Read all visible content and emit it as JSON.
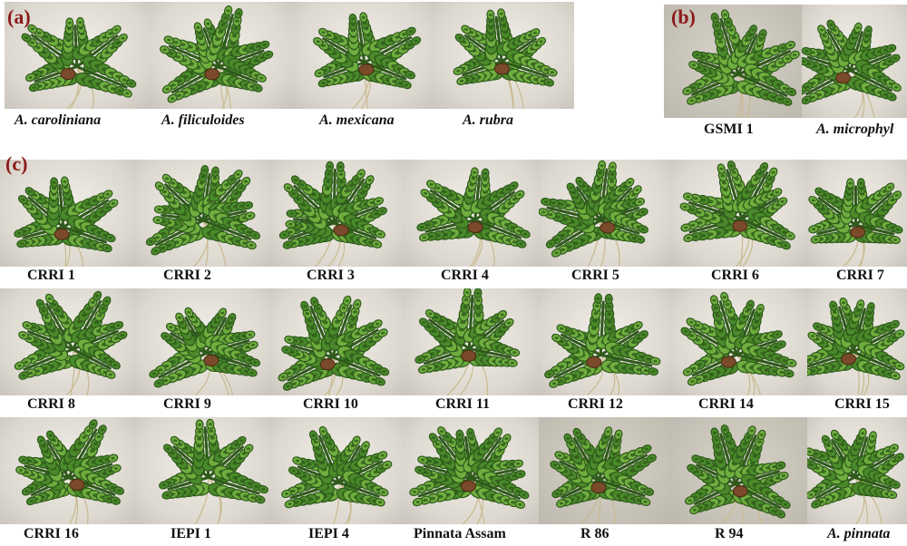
{
  "panels": {
    "a": {
      "letter": "(a)"
    },
    "b": {
      "letter": "(b)"
    },
    "c": {
      "letter": "(c)"
    }
  },
  "panel_a_labels": [
    "A. caroliniana",
    "A. filiculoides",
    "A. mexicana",
    "A. rubra"
  ],
  "panel_b_labels": [
    "GSMI 1",
    "A. microphyl"
  ],
  "row1_labels": [
    "CRRI 1",
    "CRRI 2",
    "CRRI 3",
    "CRRI 4",
    "CRRI 5",
    "CRRI 6",
    "CRRI 7"
  ],
  "row2_labels": [
    "CRRI 8",
    "CRRI 9",
    "CRRI 10",
    "CRRI 11",
    "CRRI 12",
    "CRRI 14",
    "CRRI 15"
  ],
  "row3_labels": [
    "CRRI 16",
    "IEPI 1",
    "IEPI 4",
    "Pinnata Assam",
    "R 86",
    "R 94",
    "A. pinnata"
  ],
  "colors": {
    "frond_dark": "#2f5a1c",
    "frond_mid": "#4a8a2a",
    "frond_light": "#6fae3e",
    "root": "#7a4a2a",
    "letter": "#8b1a1a"
  }
}
